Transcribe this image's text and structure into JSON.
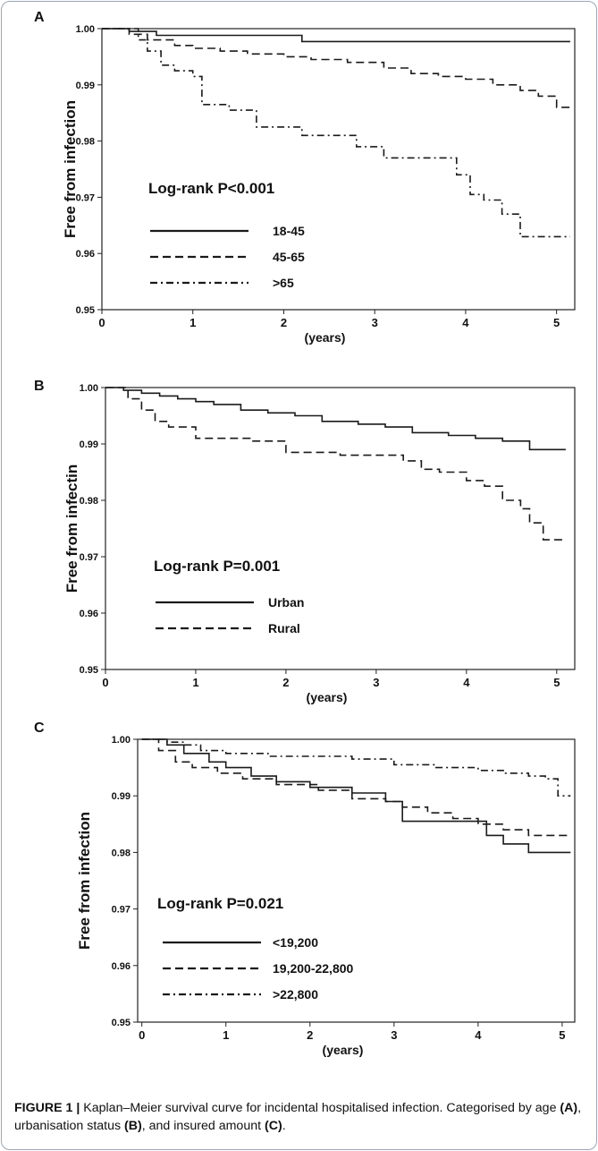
{
  "chart_data": [
    {
      "type": "line",
      "panel_label": "A",
      "xlabel": "(years)",
      "ylabel": "Free from infection",
      "xlim": [
        0,
        5.2
      ],
      "ylim": [
        0.95,
        1.0
      ],
      "x_ticks": [
        "0",
        "1",
        "2",
        "3",
        "4",
        "5"
      ],
      "y_ticks": [
        "0.95",
        "0.96",
        "0.97",
        "0.98",
        "0.99",
        "1.00"
      ],
      "annotation": "Log-rank P<0.001",
      "grid": false,
      "series": [
        {
          "name": "18-45",
          "style": "solid",
          "x": [
            0,
            0.3,
            0.6,
            2.2,
            5.15
          ],
          "y": [
            1.0,
            0.9995,
            0.9988,
            0.9977,
            0.9977
          ]
        },
        {
          "name": "45-65",
          "style": "dashed",
          "x": [
            0,
            0.3,
            0.5,
            0.8,
            1.0,
            1.3,
            1.6,
            2.0,
            2.3,
            2.7,
            3.1,
            3.4,
            3.7,
            4.0,
            4.3,
            4.6,
            4.8,
            5.0,
            5.15
          ],
          "y": [
            1.0,
            0.999,
            0.998,
            0.997,
            0.9965,
            0.996,
            0.9955,
            0.995,
            0.9945,
            0.994,
            0.993,
            0.992,
            0.9915,
            0.991,
            0.99,
            0.989,
            0.988,
            0.986,
            0.986
          ]
        },
        {
          "name": ">65",
          "style": "dashdot",
          "x": [
            0,
            0.4,
            0.5,
            0.65,
            0.8,
            1.0,
            1.1,
            1.4,
            1.7,
            2.0,
            2.2,
            2.8,
            3.1,
            3.4,
            3.9,
            4.05,
            4.2,
            4.4,
            4.6,
            5.15
          ],
          "y": [
            1.0,
            0.998,
            0.996,
            0.9935,
            0.9925,
            0.9915,
            0.9865,
            0.9855,
            0.9825,
            0.9825,
            0.981,
            0.979,
            0.977,
            0.977,
            0.974,
            0.9705,
            0.9695,
            0.967,
            0.963,
            0.963
          ]
        }
      ]
    },
    {
      "type": "line",
      "panel_label": "B",
      "xlabel": "(years)",
      "ylabel": "Free from infectin",
      "xlim": [
        0,
        5.2
      ],
      "ylim": [
        0.95,
        1.0
      ],
      "x_ticks": [
        "0",
        "1",
        "2",
        "3",
        "4",
        "5"
      ],
      "y_ticks": [
        "0.95",
        "0.96",
        "0.97",
        "0.98",
        "0.99",
        "1.00"
      ],
      "annotation": "Log-rank P=0.001",
      "grid": false,
      "series": [
        {
          "name": "Urban",
          "style": "solid",
          "x": [
            0,
            0.2,
            0.4,
            0.6,
            0.8,
            1.0,
            1.2,
            1.5,
            1.8,
            2.1,
            2.4,
            2.8,
            3.1,
            3.4,
            3.8,
            4.1,
            4.4,
            4.7,
            5.1
          ],
          "y": [
            1.0,
            0.9995,
            0.999,
            0.9985,
            0.998,
            0.9975,
            0.997,
            0.996,
            0.9955,
            0.995,
            0.994,
            0.9935,
            0.993,
            0.992,
            0.9915,
            0.991,
            0.9905,
            0.989,
            0.989
          ]
        },
        {
          "name": "Rural",
          "style": "dashed",
          "x": [
            0,
            0.25,
            0.4,
            0.55,
            0.7,
            1.0,
            1.6,
            2.0,
            2.6,
            3.3,
            3.5,
            3.7,
            4.0,
            4.2,
            4.4,
            4.6,
            4.7,
            4.85,
            5.1
          ],
          "y": [
            1.0,
            0.998,
            0.996,
            0.994,
            0.993,
            0.991,
            0.9905,
            0.9885,
            0.988,
            0.987,
            0.9855,
            0.985,
            0.9835,
            0.9825,
            0.98,
            0.9785,
            0.976,
            0.973,
            0.973
          ]
        }
      ]
    },
    {
      "type": "line",
      "panel_label": "C",
      "xlabel": "(years)",
      "ylabel": "Free from infection",
      "xlim": [
        -0.05,
        5.15
      ],
      "ylim": [
        0.95,
        1.0
      ],
      "x_ticks": [
        "0",
        "1",
        "2",
        "3",
        "4",
        "5"
      ],
      "y_ticks": [
        "0.95",
        "0.96",
        "0.97",
        "0.98",
        "0.99",
        "1.00"
      ],
      "annotation": "Log-rank P=0.021",
      "grid": false,
      "series": [
        {
          "name": "<19,200",
          "style": "solid",
          "x": [
            0,
            0.3,
            0.5,
            0.8,
            1.0,
            1.3,
            1.6,
            2.0,
            2.5,
            2.9,
            3.1,
            3.5,
            3.9,
            4.1,
            4.3,
            4.6,
            5.1
          ],
          "y": [
            1.0,
            0.999,
            0.9975,
            0.996,
            0.995,
            0.9935,
            0.9925,
            0.9915,
            0.9905,
            0.989,
            0.9855,
            0.9855,
            0.9855,
            0.983,
            0.9815,
            0.98,
            0.98
          ]
        },
        {
          "name": "19,200-22,800",
          "style": "dashed",
          "x": [
            0,
            0.2,
            0.4,
            0.6,
            0.9,
            1.2,
            1.6,
            2.1,
            2.5,
            2.9,
            3.1,
            3.4,
            3.7,
            4.0,
            4.3,
            4.6,
            5.1
          ],
          "y": [
            1.0,
            0.998,
            0.996,
            0.995,
            0.994,
            0.993,
            0.992,
            0.991,
            0.9895,
            0.989,
            0.988,
            0.987,
            0.986,
            0.985,
            0.984,
            0.983,
            0.983
          ]
        },
        {
          "name": ">22,800",
          "style": "dashdot",
          "x": [
            0,
            0.3,
            0.5,
            0.7,
            1.0,
            1.5,
            2.0,
            2.5,
            3.0,
            3.5,
            4.0,
            4.3,
            4.6,
            4.8,
            4.95,
            5.1
          ],
          "y": [
            1.0,
            0.9995,
            0.999,
            0.998,
            0.9975,
            0.997,
            0.997,
            0.9965,
            0.9955,
            0.995,
            0.9945,
            0.994,
            0.9935,
            0.993,
            0.99,
            0.99
          ]
        }
      ]
    }
  ],
  "caption": {
    "lead": "FIGURE 1 |",
    "text_1": " Kaplan–Meier survival curve for incidental hospitalised infection. Categorised by age ",
    "a": "(A)",
    "text_2": ", urbanisation status ",
    "b": "(B)",
    "text_3": ", and insured amount ",
    "c": "(C)",
    "text_4": "."
  }
}
